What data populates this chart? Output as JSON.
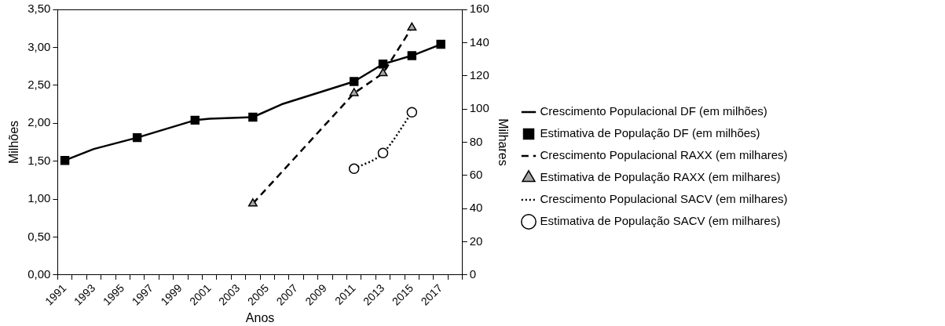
{
  "chart_data": {
    "type": "line",
    "xlabel": "Anos",
    "ylabel": "Milhões",
    "y2label": "Milhares",
    "categories": [
      "1991",
      null,
      "1993",
      null,
      "1995",
      null,
      "1997",
      null,
      "1999",
      null,
      "2001",
      null,
      "2003",
      null,
      "2005",
      null,
      "2007",
      null,
      "2009",
      null,
      "2011",
      null,
      "2013",
      null,
      "2015",
      null,
      "2017",
      null
    ],
    "ylim": [
      0,
      3.5
    ],
    "yticks": [
      {
        "value": 0,
        "label": "0,00"
      },
      {
        "value": 0.5,
        "label": "0,50"
      },
      {
        "value": 1,
        "label": "1,00"
      },
      {
        "value": 1.5,
        "label": "1,50"
      },
      {
        "value": 2,
        "label": "2,00"
      },
      {
        "value": 2.5,
        "label": "2,50"
      },
      {
        "value": 3,
        "label": "3,00"
      },
      {
        "value": 3.5,
        "label": "3,50"
      }
    ],
    "y2lim": [
      0,
      160
    ],
    "y2ticks": [
      0,
      20,
      40,
      60,
      80,
      100,
      120,
      140,
      160
    ],
    "grid": false,
    "legend": "right",
    "series": [
      {
        "name": "Crescimento Populacional DF (em milhões)",
        "type": "line",
        "line_style": "solid",
        "marker": "none",
        "color": "#000000",
        "values": [
          1.51,
          null,
          1.66,
          null,
          null,
          1.81,
          null,
          null,
          null,
          2.04,
          2.06,
          null,
          null,
          2.08,
          null,
          2.25,
          null,
          null,
          null,
          null,
          2.55,
          null,
          2.78,
          null,
          2.89,
          null,
          3.04,
          null
        ]
      },
      {
        "name": "Estimativa de População DF (em milhões)",
        "type": "scatter",
        "marker": "square",
        "color": "#000000",
        "values": [
          1.51,
          null,
          null,
          null,
          null,
          1.81,
          null,
          null,
          null,
          2.04,
          null,
          null,
          null,
          2.08,
          null,
          null,
          null,
          null,
          null,
          null,
          2.55,
          null,
          2.78,
          null,
          2.89,
          null,
          3.04,
          null
        ]
      },
      {
        "name": "Crescimento Populacional RAXX (em milhares)",
        "type": "line",
        "axis": "y2",
        "line_style": "dashed",
        "marker": "none",
        "color": "#000000",
        "values": [
          null,
          null,
          null,
          null,
          null,
          null,
          null,
          null,
          null,
          null,
          null,
          null,
          null,
          43,
          null,
          null,
          null,
          null,
          null,
          null,
          109.5,
          null,
          121.5,
          null,
          149,
          null,
          null,
          null
        ]
      },
      {
        "name": "Estimativa de População RAXX (em milhares)",
        "type": "scatter",
        "axis": "y2",
        "marker": "triangle",
        "color": "#a6a6a6",
        "values": [
          null,
          null,
          null,
          null,
          null,
          null,
          null,
          null,
          null,
          null,
          null,
          null,
          null,
          43,
          null,
          null,
          null,
          null,
          null,
          null,
          109.5,
          null,
          121.5,
          null,
          149,
          null,
          null,
          null
        ]
      },
      {
        "name": "Crescimento Populacional SACV (em milhares)",
        "type": "line",
        "axis": "y2",
        "line_style": "dotted",
        "marker": "none",
        "color": "#000000",
        "values": [
          null,
          null,
          null,
          null,
          null,
          null,
          null,
          null,
          null,
          null,
          null,
          null,
          null,
          null,
          null,
          null,
          null,
          null,
          null,
          null,
          64,
          null,
          73.5,
          null,
          98,
          null,
          null,
          null
        ]
      },
      {
        "name": "Estimativa de População SACV (em milhares)",
        "type": "scatter",
        "axis": "y2",
        "marker": "circle",
        "color": "#000000",
        "values": [
          null,
          null,
          null,
          null,
          null,
          null,
          null,
          null,
          null,
          null,
          null,
          null,
          null,
          null,
          null,
          null,
          null,
          null,
          null,
          null,
          64,
          null,
          73.5,
          null,
          98,
          null,
          null,
          null
        ]
      }
    ]
  }
}
